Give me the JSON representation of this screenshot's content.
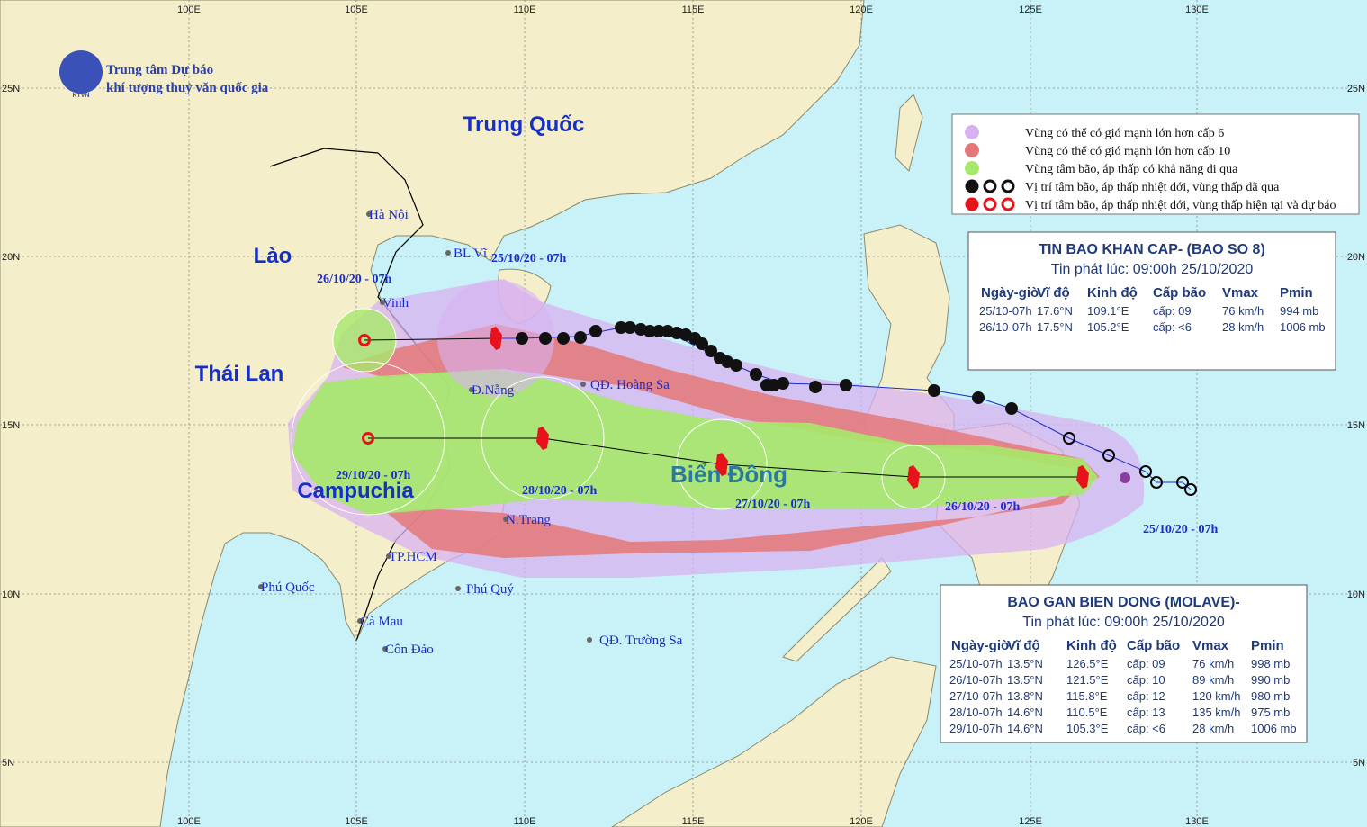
{
  "header": {
    "org_line1": "Trung tâm Dự báo",
    "org_line2": "khí tượng thuỷ văn quốc gia",
    "logo": "KTVN"
  },
  "grid": {
    "lon_labels": [
      "100E",
      "105E",
      "110E",
      "115E",
      "120E",
      "125E",
      "130E"
    ],
    "lat_labels": [
      "25N",
      "20N",
      "15N",
      "10N",
      "5N"
    ]
  },
  "regions": [
    "Trung Quốc",
    "Lào",
    "Thái Lan",
    "Campuchia",
    "Biển Đông"
  ],
  "places": [
    "Hà Nội",
    "BL Vĩ",
    "Vinh",
    "Đ.Nẵng",
    "QĐ. Hoàng Sa",
    "N.Trang",
    "TP.HCM",
    "Phú Quốc",
    "Phú Quý",
    "Cà Mau",
    "Côn Đảo",
    "QĐ. Trường Sa"
  ],
  "track_labels": [
    "25/10/20 - 07h",
    "26/10/20 - 07h",
    "25/10/20 - 07h",
    "26/10/20 - 07h",
    "27/10/20 - 07h",
    "28/10/20 - 07h",
    "29/10/20 - 07h"
  ],
  "legend": [
    "Vùng có thể có gió mạnh lớn hơn cấp 6",
    "Vùng có thể có gió mạnh lớn hơn cấp 10",
    "Vùng tâm bão, áp thấp có khả năng đi qua",
    "Vị trí tâm bão, áp thấp nhiệt đới, vùng thấp đã qua",
    "Vị trí tâm bão, áp thấp nhiệt đới, vùng thấp hiện tại và dự báo"
  ],
  "bulletin_1": {
    "title": "TIN BAO KHAN CAP- (BAO SO 8)",
    "issued": "Tin phát lúc: 09:00h 25/10/2020",
    "headers": [
      "Ngày-giờ",
      "Vĩ độ",
      "Kinh độ",
      "Cấp bão",
      "Vmax",
      "Pmin"
    ],
    "rows": [
      [
        "25/10-07h",
        "17.6°N",
        "109.1°E",
        "cấp: 09",
        "76 km/h",
        "994 mb"
      ],
      [
        "26/10-07h",
        "17.5°N",
        "105.2°E",
        "cấp: <6",
        "28 km/h",
        "1006 mb"
      ]
    ]
  },
  "bulletin_2": {
    "title": "BAO GAN BIEN DONG (MOLAVE)-",
    "issued": "Tin phát lúc: 09:00h 25/10/2020",
    "headers": [
      "Ngày-giờ",
      "Vĩ độ",
      "Kinh độ",
      "Cấp bão",
      "Vmax",
      "Pmin"
    ],
    "rows": [
      [
        "25/10-07h",
        "13.5°N",
        "126.5°E",
        "cấp: 09",
        "76 km/h",
        "998 mb"
      ],
      [
        "26/10-07h",
        "13.5°N",
        "121.5°E",
        "cấp: 10",
        "89 km/h",
        "990 mb"
      ],
      [
        "27/10-07h",
        "13.8°N",
        "115.8°E",
        "cấp: 12",
        "120 km/h",
        "980 mb"
      ],
      [
        "28/10-07h",
        "14.6°N",
        "110.5°E",
        "cấp: 13",
        "135 km/h",
        "975 mb"
      ],
      [
        "29/10-07h",
        "14.6°N",
        "105.3°E",
        "cấp: <6",
        "28 km/h",
        "1006 mb"
      ]
    ]
  }
}
